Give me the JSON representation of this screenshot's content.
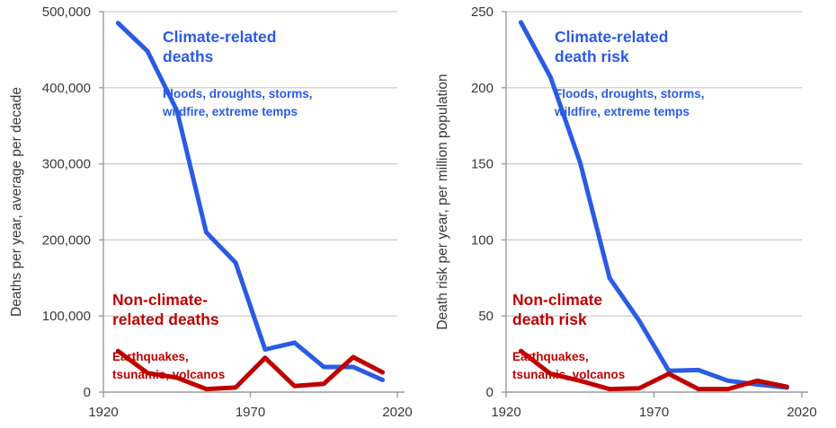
{
  "chart_data": [
    {
      "type": "line",
      "ylabel": "Deaths per year, average per decade",
      "xlabel": "",
      "xlim": [
        1920,
        2020
      ],
      "ylim": [
        0,
        500000
      ],
      "yticks": [
        0,
        100000,
        200000,
        300000,
        400000,
        500000
      ],
      "ytick_labels": [
        "0",
        "100,000",
        "200,000",
        "300,000",
        "400,000",
        "500,000"
      ],
      "xticks": [
        1920,
        1970,
        2020
      ],
      "xtick_labels": [
        "1920",
        "1970",
        "2020"
      ],
      "grid": true,
      "legend_position": "annotated-inline",
      "x": [
        1925,
        1935,
        1945,
        1955,
        1965,
        1975,
        1985,
        1995,
        2005,
        2015
      ],
      "series": [
        {
          "name": "Climate-related deaths",
          "color": "#2b5be4",
          "values": [
            485000,
            448000,
            370000,
            210000,
            170000,
            56000,
            65000,
            33000,
            33000,
            16000
          ]
        },
        {
          "name": "Non-climate-related deaths",
          "color": "#c00000",
          "values": [
            54000,
            25000,
            19000,
            4000,
            6000,
            45000,
            8000,
            11000,
            46000,
            26000
          ]
        }
      ],
      "annotations": [
        {
          "title": "Climate-related\ndeaths",
          "subtitle": "Floods, droughts, storms,\nwildfire, extreme temps",
          "color": "#2b5be4"
        },
        {
          "title": "Non-climate-\nrelated deaths",
          "subtitle": "Earthquakes,\ntsunamis, volcanos",
          "color": "#c00000"
        }
      ]
    },
    {
      "type": "line",
      "ylabel": "Death risk per year, per million population",
      "xlabel": "",
      "xlim": [
        1920,
        2020
      ],
      "ylim": [
        0,
        250
      ],
      "yticks": [
        0,
        50,
        100,
        150,
        200,
        250
      ],
      "ytick_labels": [
        "0",
        "50",
        "100",
        "150",
        "200",
        "250"
      ],
      "xticks": [
        1920,
        1970,
        2020
      ],
      "xtick_labels": [
        "1920",
        "1970",
        "2020"
      ],
      "grid": true,
      "legend_position": "annotated-inline",
      "x": [
        1925,
        1935,
        1945,
        1955,
        1965,
        1975,
        1985,
        1995,
        2005,
        2015
      ],
      "series": [
        {
          "name": "Climate-related death risk",
          "color": "#2b5be4",
          "values": [
            243,
            207,
            151,
            75,
            47,
            14,
            14.5,
            7.5,
            5,
            3
          ]
        },
        {
          "name": "Non-climate death risk",
          "color": "#c00000",
          "values": [
            27,
            12,
            7.5,
            2,
            2.5,
            12,
            2,
            2,
            7.5,
            3.5
          ]
        }
      ],
      "annotations": [
        {
          "title": "Climate-related\ndeath risk",
          "subtitle": "Floods, droughts, storms,\nwildfire, extreme temps",
          "color": "#2b5be4"
        },
        {
          "title": "Non-climate\ndeath risk",
          "subtitle": "Earthquakes,\ntsunamis, volcanos",
          "color": "#c00000"
        }
      ]
    }
  ]
}
